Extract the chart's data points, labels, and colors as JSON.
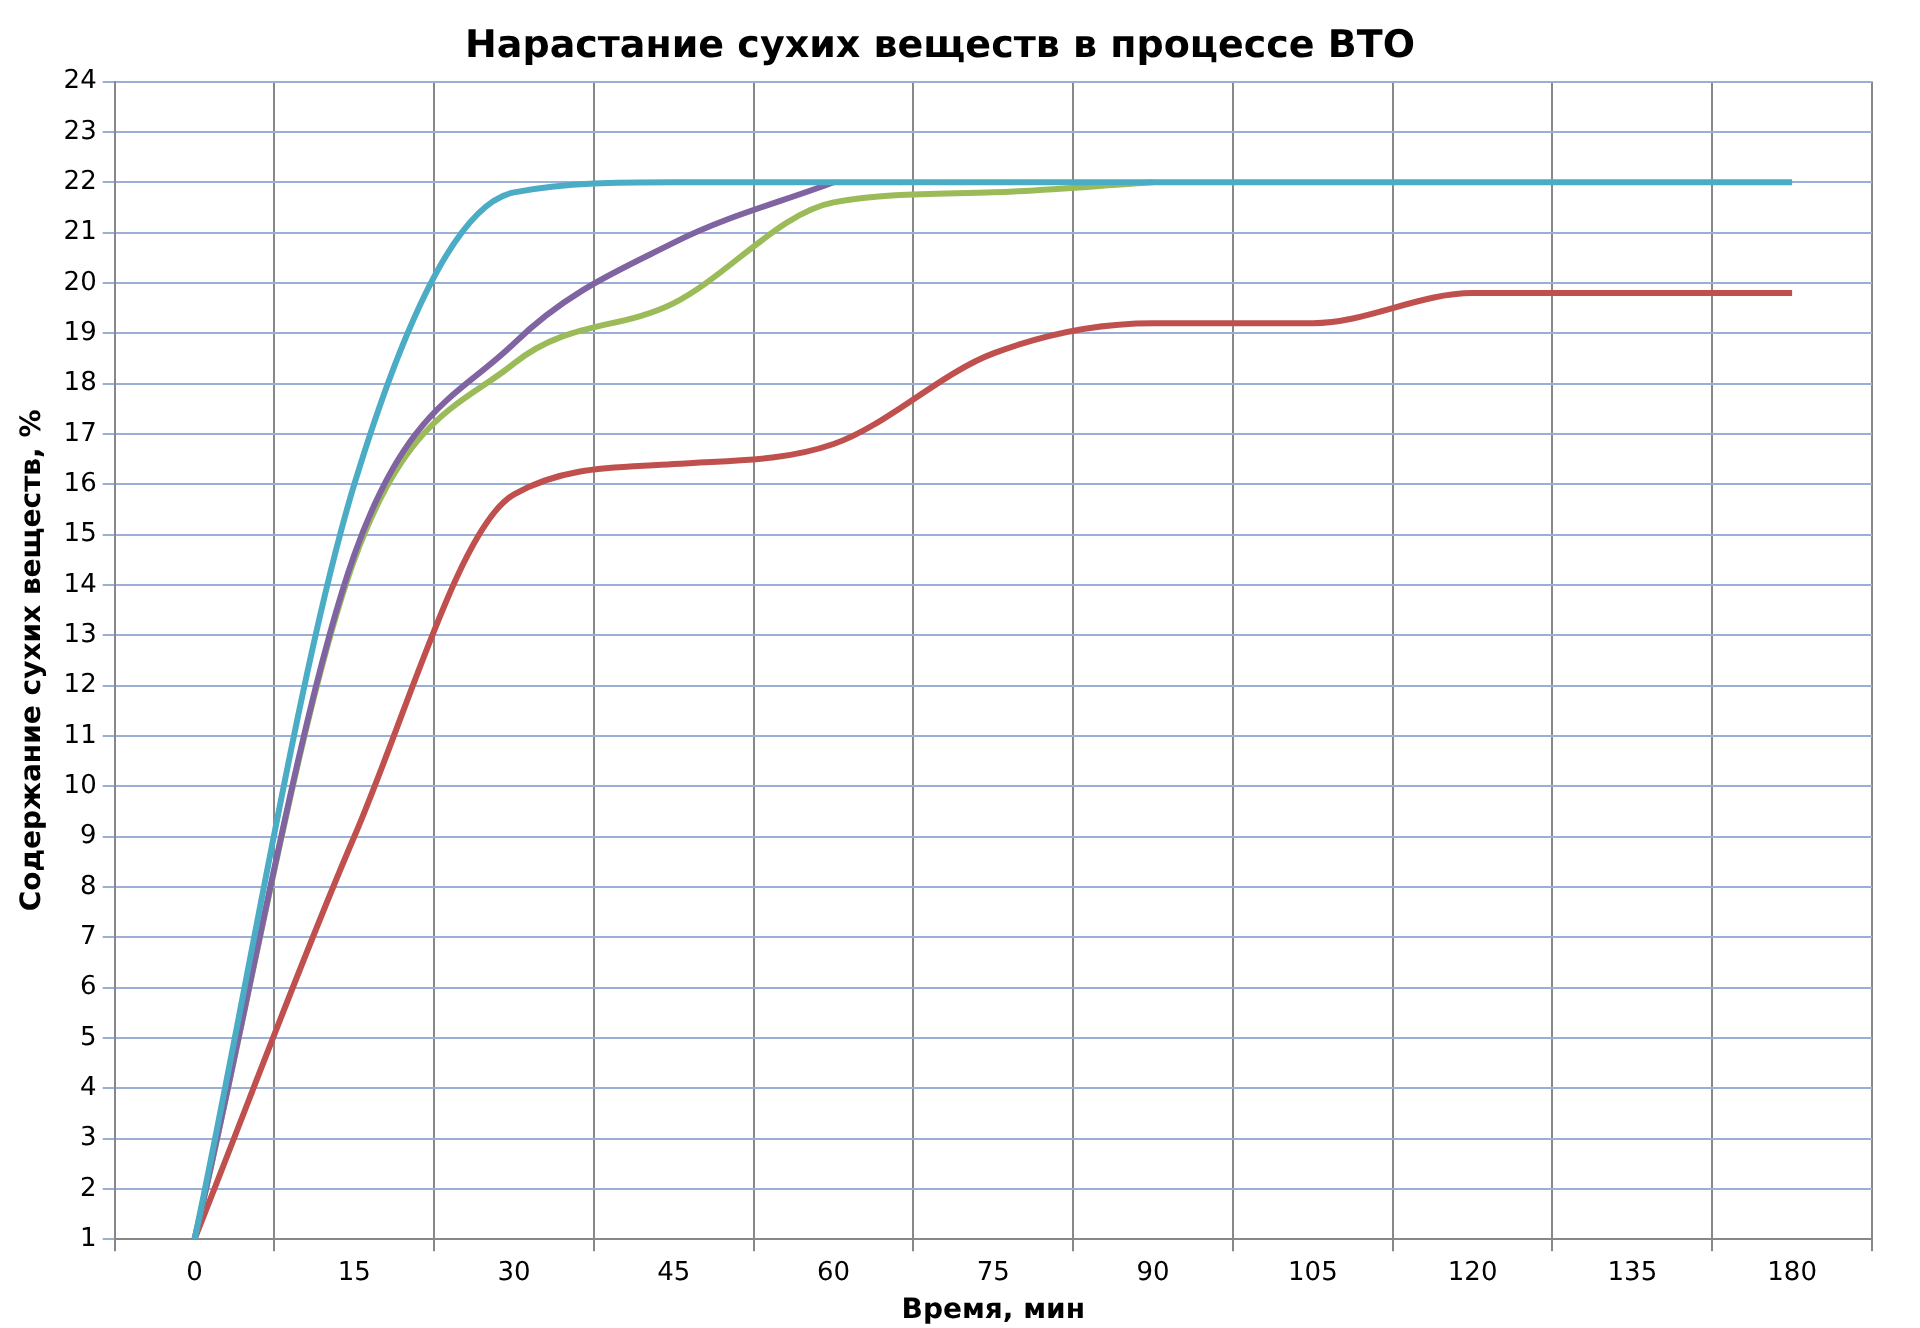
{
  "chart_data": {
    "type": "line",
    "title": "Нарастание сухих веществ в процессе ВТО",
    "xlabel": "Время, мин",
    "ylabel": "Содержание сухих веществ, %",
    "categories": [
      "0",
      "15",
      "30",
      "45",
      "60",
      "75",
      "90",
      "105",
      "120",
      "135",
      "180"
    ],
    "ylim": [
      1,
      24
    ],
    "yticks": [
      1,
      2,
      3,
      4,
      5,
      6,
      7,
      8,
      9,
      10,
      11,
      12,
      13,
      14,
      15,
      16,
      17,
      18,
      19,
      20,
      21,
      22,
      23,
      24
    ],
    "grid": true,
    "legend": false,
    "marker": "none",
    "line_style": "solid",
    "series": [
      {
        "color": "#4bacc6",
        "values": [
          1,
          16,
          21.8,
          22,
          22,
          22,
          22,
          22,
          22,
          22,
          22
        ]
      },
      {
        "color": "#8064a2",
        "values": [
          1,
          14.6,
          18.8,
          20.8,
          22,
          null,
          null,
          null,
          null,
          null,
          null
        ]
      },
      {
        "color": "#9bbb59",
        "values": [
          1,
          14.5,
          18.4,
          19.6,
          21.6,
          21.8,
          22,
          null,
          null,
          null,
          null
        ]
      },
      {
        "color": "#c0504d",
        "values": [
          1,
          9,
          15.8,
          16.4,
          16.8,
          18.6,
          19.2,
          19.2,
          19.8,
          19.8,
          19.8
        ]
      }
    ]
  }
}
